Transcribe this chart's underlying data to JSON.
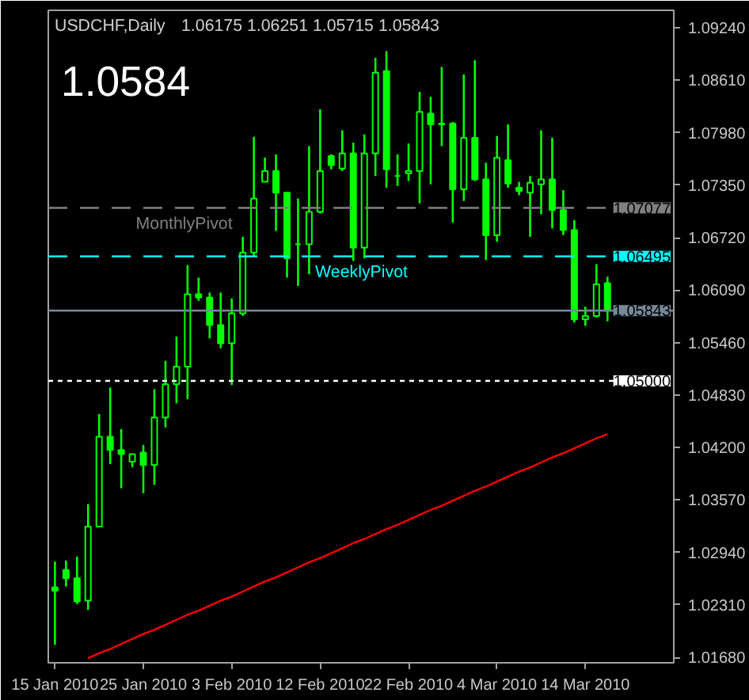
{
  "chart_data": {
    "type": "candlestick",
    "title": "USDCHF,Daily",
    "subtitle": "1.06175 1.06251 1.05715 1.05843",
    "annotations": [
      "1.0584",
      {
        "text": "1.07077",
        "y": 1.07077
      },
      {
        "text": "1.06495",
        "y": 1.06495
      },
      {
        "text": "1.05843",
        "y": 1.05843
      },
      {
        "text": "1.05000",
        "y": 1.05
      }
    ],
    "color": "#00ff00",
    "categories": [
      "15 Jan 2010",
      null,
      null,
      null,
      null,
      null,
      null,
      null,
      "25 Jan 2010",
      null,
      null,
      null,
      null,
      null,
      null,
      null,
      "3 Feb 2010",
      null,
      null,
      null,
      null,
      null,
      null,
      null,
      "12 Feb 2010",
      null,
      null,
      null,
      null,
      null,
      null,
      null,
      "22 Feb 2010",
      null,
      null,
      null,
      null,
      null,
      null,
      null,
      "4 Mar 2010",
      null,
      null,
      null,
      null,
      null,
      null,
      null,
      "14 Mar 2010",
      null,
      null
    ],
    "ohlc": [
      [
        1.0252,
        1.0283,
        1.0183,
        1.0248
      ],
      [
        1.0273,
        1.0284,
        1.0253,
        1.0263
      ],
      [
        1.0263,
        1.0289,
        1.0232,
        1.0235
      ],
      [
        1.0236,
        1.0352,
        1.0225,
        1.0325
      ],
      [
        1.0325,
        1.046,
        1.0324,
        1.0433
      ],
      [
        1.0433,
        1.0492,
        1.04,
        1.0417
      ],
      [
        1.0417,
        1.0442,
        1.0371,
        1.0412
      ],
      [
        1.0403,
        1.0412,
        1.0396,
        1.0412
      ],
      [
        1.0414,
        1.0423,
        1.0365,
        1.0399
      ],
      [
        1.0399,
        1.049,
        1.0375,
        1.0456
      ],
      [
        1.0456,
        1.0524,
        1.0444,
        1.0496
      ],
      [
        1.0496,
        1.0553,
        1.0473,
        1.0517
      ],
      [
        1.0517,
        1.0639,
        1.0478,
        1.0604
      ],
      [
        1.0604,
        1.0624,
        1.0596,
        1.06
      ],
      [
        1.06,
        1.0606,
        1.0551,
        1.0567
      ],
      [
        1.0567,
        1.0606,
        1.0539,
        1.0545
      ],
      [
        1.0545,
        1.0599,
        1.0495,
        1.0581
      ],
      [
        1.0581,
        1.0673,
        1.0578,
        1.0654
      ],
      [
        1.0654,
        1.0793,
        1.0649,
        1.0719
      ],
      [
        1.0739,
        1.0768,
        1.0739,
        1.0752
      ],
      [
        1.0752,
        1.0772,
        1.068,
        1.0726
      ],
      [
        1.0726,
        1.0726,
        1.0624,
        1.0647
      ],
      [
        1.0664,
        1.0719,
        1.0614,
        1.0664
      ],
      [
        1.0664,
        1.0782,
        1.0628,
        1.0703
      ],
      [
        1.0703,
        1.0826,
        1.0701,
        1.0752
      ],
      [
        1.077,
        1.0772,
        1.0754,
        1.0759
      ],
      [
        1.0755,
        1.0801,
        1.0752,
        1.0773
      ],
      [
        1.0773,
        1.0786,
        1.0644,
        1.066
      ],
      [
        1.066,
        1.0796,
        1.0647,
        1.0773
      ],
      [
        1.0773,
        1.0888,
        1.0746,
        1.087
      ],
      [
        1.0872,
        1.0896,
        1.0732,
        1.0754
      ],
      [
        1.0746,
        1.0772,
        1.0734,
        1.0746
      ],
      [
        1.0749,
        1.0785,
        1.074,
        1.0752
      ],
      [
        1.0752,
        1.0847,
        1.0713,
        1.0823
      ],
      [
        1.0821,
        1.0841,
        1.0736,
        1.0808
      ],
      [
        1.0808,
        1.0877,
        1.0782,
        1.0809
      ],
      [
        1.0809,
        1.0811,
        1.069,
        1.073
      ],
      [
        1.073,
        1.0868,
        1.0716,
        1.0792
      ],
      [
        1.0792,
        1.0885,
        1.074,
        1.0742
      ],
      [
        1.0742,
        1.0762,
        1.0645,
        1.0675
      ],
      [
        1.0675,
        1.0794,
        1.0667,
        1.0768
      ],
      [
        1.0765,
        1.0808,
        1.0732,
        1.0737
      ],
      [
        1.0732,
        1.0739,
        1.0723,
        1.0728
      ],
      [
        1.0726,
        1.0746,
        1.0673,
        1.0738
      ],
      [
        1.0736,
        1.0801,
        1.07,
        1.0742
      ],
      [
        1.0742,
        1.0792,
        1.0683,
        1.0705
      ],
      [
        1.0705,
        1.0729,
        1.0675,
        1.0681
      ],
      [
        1.0681,
        1.0693,
        1.057,
        1.0574
      ],
      [
        1.0574,
        1.0589,
        1.0566,
        1.0578
      ],
      [
        1.0578,
        1.064,
        1.0576,
        1.0616
      ],
      [
        1.06175,
        1.06251,
        1.05715,
        1.05843
      ]
    ],
    "series": [
      {
        "type": "line",
        "color": "#ff0000",
        "values": [
          null,
          null,
          null,
          1.0167,
          1.0173,
          1.0178,
          1.0184,
          1.019,
          1.0196,
          1.0201,
          1.0207,
          1.0213,
          1.0219,
          1.0224,
          1.023,
          1.0236,
          1.0241,
          1.0247,
          1.0253,
          1.0259,
          1.0264,
          1.027,
          1.0276,
          1.0282,
          1.0287,
          1.0293,
          1.0299,
          1.0305,
          1.031,
          1.0316,
          1.0322,
          1.0327,
          1.0333,
          1.0339,
          1.0345,
          1.035,
          1.0356,
          1.0362,
          1.0368,
          1.0373,
          1.0379,
          1.0385,
          1.0391,
          1.0396,
          1.0402,
          1.0408,
          1.0413,
          1.0419,
          1.0425,
          1.0431,
          1.0436
        ]
      }
    ],
    "ref_lines": [
      {
        "axis": "y",
        "value": 1.07077,
        "label": "MonthlyPivot",
        "color": "#808080",
        "line_style": "dashed"
      },
      {
        "axis": "y",
        "value": 1.06495,
        "label": "WeeklyPivot",
        "color": "#00ffff",
        "line_style": "dashed"
      },
      {
        "axis": "y",
        "value": 1.05843,
        "color": "#778899",
        "line_style": "solid"
      },
      {
        "axis": "y",
        "value": 1.05,
        "color": "#ffffff",
        "line_style": "dotted"
      }
    ],
    "ylim": [
      1.01614,
      1.0945
    ],
    "yticks": [
      {
        "value": 1.0924,
        "label": "1.09240"
      },
      {
        "value": 1.0861,
        "label": "1.08610"
      },
      {
        "value": 1.0798,
        "label": "1.07980"
      },
      {
        "value": 1.0735,
        "label": "1.07350"
      },
      {
        "value": 1.0672,
        "label": "1.06720"
      },
      {
        "value": 1.0609,
        "label": "1.06090"
      },
      {
        "value": 1.0546,
        "label": "1.05460"
      },
      {
        "value": 1.0483,
        "label": "1.04830"
      },
      {
        "value": 1.042,
        "label": "1.04200"
      },
      {
        "value": 1.0357,
        "label": "1.03570"
      },
      {
        "value": 1.0294,
        "label": "1.02940"
      },
      {
        "value": 1.0231,
        "label": "1.02310"
      },
      {
        "value": 1.0168,
        "label": "1.01680"
      }
    ]
  }
}
